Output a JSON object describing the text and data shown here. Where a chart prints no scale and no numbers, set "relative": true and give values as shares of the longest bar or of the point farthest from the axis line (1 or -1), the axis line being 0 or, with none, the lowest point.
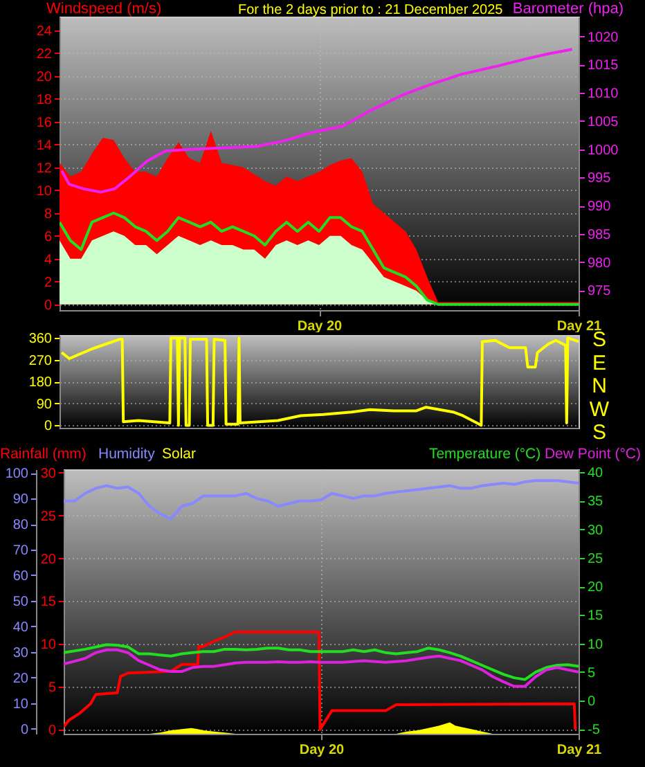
{
  "chart_data": [
    {
      "type": "line",
      "title": "For the 2 days prior to : 21 December 2025",
      "ylabel": "Windspeed (m/s)",
      "y2label": "Barometer (hpa)",
      "xlim": [
        "2025-12-19",
        "2025-12-21"
      ],
      "xticks": [
        {
          "value": "2025-12-20",
          "label": "Day 20"
        },
        {
          "value": "2025-12-21",
          "label": "Day 21"
        }
      ],
      "ylim": [
        -0.5,
        25.2
      ],
      "yticks": [
        0,
        2,
        4,
        6,
        8,
        10,
        12,
        14,
        16,
        18,
        20,
        22,
        24
      ],
      "y2lim": [
        971.5,
        1023.5
      ],
      "y2ticks": [
        975,
        980,
        985,
        990,
        995,
        1000,
        1005,
        1010,
        1015,
        1020
      ],
      "grid": true,
      "marker": "none",
      "x": [
        "2025-12-19T00:00",
        "2025-12-19T01:00",
        "2025-12-19T02:00",
        "2025-12-19T03:00",
        "2025-12-19T04:00",
        "2025-12-19T05:00",
        "2025-12-19T06:00",
        "2025-12-19T07:00",
        "2025-12-19T08:00",
        "2025-12-19T09:00",
        "2025-12-19T10:00",
        "2025-12-19T11:00",
        "2025-12-19T12:00",
        "2025-12-19T13:00",
        "2025-12-19T14:00",
        "2025-12-19T15:00",
        "2025-12-19T16:00",
        "2025-12-19T17:00",
        "2025-12-19T18:00",
        "2025-12-19T19:00",
        "2025-12-19T20:00",
        "2025-12-19T21:00",
        "2025-12-19T22:00",
        "2025-12-19T23:00",
        "2025-12-20T00:00",
        "2025-12-20T01:00",
        "2025-12-20T02:00",
        "2025-12-20T03:00",
        "2025-12-20T04:00",
        "2025-12-20T05:00",
        "2025-12-20T06:00",
        "2025-12-20T07:00",
        "2025-12-20T08:00",
        "2025-12-20T09:00",
        "2025-12-20T10:00",
        "2025-12-20T11:00",
        "2025-12-20T12:00",
        "2025-12-20T13:00",
        "2025-12-20T14:00",
        "2025-12-20T15:00",
        "2025-12-20T16:00",
        "2025-12-20T17:00",
        "2025-12-20T18:00",
        "2025-12-20T19:00",
        "2025-12-20T20:00",
        "2025-12-20T21:00",
        "2025-12-20T22:00",
        "2025-12-20T23:00",
        "2025-12-21T00:00"
      ],
      "series": [
        {
          "type": "area",
          "color": "#ff0000",
          "values": [
            12.4,
            11.2,
            11.6,
            13.2,
            14.6,
            14.4,
            12.8,
            11.6,
            11.6,
            11.2,
            12.8,
            14.2,
            12.8,
            12.4,
            15.2,
            12.4,
            12.2,
            12.0,
            11.4,
            10.8,
            10.4,
            11.2,
            10.8,
            11.2,
            11.6,
            12.2,
            12.6,
            12.8,
            11.6,
            8.8,
            8.0,
            7.2,
            6.4,
            4.8,
            2.4,
            0.2,
            0.2,
            0.2,
            0.2,
            0.2,
            0.2,
            0.2,
            0.2,
            0.2,
            0.2,
            0.2,
            0.2,
            0.2,
            0.2
          ]
        },
        {
          "type": "area",
          "color": "#ccffcc",
          "values": [
            5.6,
            4.0,
            4.0,
            5.6,
            6.0,
            6.4,
            6.0,
            5.2,
            5.2,
            4.4,
            5.2,
            6.0,
            5.6,
            5.2,
            5.6,
            5.2,
            5.2,
            4.8,
            4.8,
            4.0,
            5.2,
            5.6,
            5.2,
            5.6,
            5.2,
            6.0,
            6.0,
            5.2,
            4.8,
            3.6,
            2.4,
            2.0,
            1.6,
            1.2,
            0.4,
            0,
            0,
            0,
            0,
            0,
            0,
            0,
            0,
            0,
            0,
            0,
            0,
            0,
            0
          ]
        },
        {
          "type": "line",
          "color": "#22dd22",
          "values": [
            7.2,
            5.6,
            4.8,
            7.2,
            7.6,
            8.0,
            7.6,
            6.8,
            6.4,
            5.6,
            6.4,
            7.6,
            7.2,
            6.8,
            7.2,
            6.4,
            6.8,
            6.4,
            6.0,
            5.2,
            6.4,
            7.2,
            6.4,
            7.2,
            6.4,
            7.6,
            7.6,
            6.8,
            6.4,
            4.8,
            3.2,
            2.8,
            2.4,
            1.6,
            0.4,
            0,
            0,
            0,
            0,
            0,
            0,
            0,
            0,
            0,
            0,
            0,
            0,
            0,
            0
          ]
        },
        {
          "type": "line",
          "color": "#ee22ee",
          "axis": "y2",
          "x": [
            "2025-12-19T00:12",
            "2025-12-19T00:54",
            "2025-12-19T02:12",
            "2025-12-19T03:48",
            "2025-12-19T05:06",
            "2025-12-19T06:24",
            "2025-12-19T08:06",
            "2025-12-19T09:48",
            "2025-12-19T12:18",
            "2025-12-19T15:42",
            "2025-12-19T18:12",
            "2025-12-19T20:48",
            "2025-12-19T23:12",
            "2025-12-20T02:12",
            "2025-12-20T04:42",
            "2025-12-20T07:42",
            "2025-12-20T10:12",
            "2025-12-20T13:12",
            "2025-12-20T16:12",
            "2025-12-20T19:06",
            "2025-12-20T21:12",
            "2025-12-20T23:24"
          ],
          "values": [
            996.2,
            993.8,
            993.0,
            992.4,
            993.0,
            995.0,
            997.9,
            999.7,
            1000.0,
            1000.3,
            1000.5,
            1001.5,
            1002.9,
            1004.1,
            1006.8,
            1009.6,
            1011.4,
            1013.3,
            1014.6,
            1016.0,
            1016.9,
            1017.7
          ]
        }
      ]
    },
    {
      "type": "line",
      "xlim": [
        "2025-12-19",
        "2025-12-21"
      ],
      "tick_labels": "y",
      "ylim": [
        -10,
        372
      ],
      "yticks": [
        0,
        90,
        180,
        270,
        360
      ],
      "annotations": [
        "S",
        "E",
        "N",
        "W",
        "S"
      ],
      "grid": true,
      "marker": "none",
      "series": [
        {
          "color": "#ffff00",
          "x": [
            "2025-12-19T00:12",
            "2025-12-19T00:54",
            "2025-12-19T03:00",
            "2025-12-19T05:36",
            "2025-12-19T05:48",
            "2025-12-19T05:54",
            "2025-12-19T07:18",
            "2025-12-19T10:12",
            "2025-12-19T10:18",
            "2025-12-19T10:54",
            "2025-12-19T11:00",
            "2025-12-19T11:06",
            "2025-12-19T11:36",
            "2025-12-19T11:42",
            "2025-12-19T12:00",
            "2025-12-19T12:06",
            "2025-12-19T13:36",
            "2025-12-19T13:42",
            "2025-12-19T14:12",
            "2025-12-19T14:18",
            "2025-12-19T15:18",
            "2025-12-19T15:24",
            "2025-12-19T16:30",
            "2025-12-19T16:36",
            "2025-12-19T16:42",
            "2025-12-19T20:12",
            "2025-12-19T22:18",
            "2025-12-20T00:24",
            "2025-12-20T03:00",
            "2025-12-20T04:42",
            "2025-12-20T06:54",
            "2025-12-20T09:00",
            "2025-12-20T09:54",
            "2025-12-20T12:24",
            "2025-12-20T13:18",
            "2025-12-20T14:36",
            "2025-12-20T15:00",
            "2025-12-20T15:06",
            "2025-12-20T16:18",
            "2025-12-20T17:36",
            "2025-12-20T19:06",
            "2025-12-20T19:18",
            "2025-12-20T20:00",
            "2025-12-20T20:12",
            "2025-12-20T21:12",
            "2025-12-20T21:54",
            "2025-12-20T22:48",
            "2025-12-20T22:54",
            "2025-12-20T23:00",
            "2025-12-21T00:00"
          ],
          "values": [
            300,
            275,
            315,
            355,
            355,
            15,
            20,
            10,
            360,
            360,
            0,
            360,
            360,
            0,
            0,
            355,
            355,
            0,
            0,
            355,
            350,
            5,
            5,
            360,
            10,
            20,
            40,
            45,
            55,
            65,
            60,
            60,
            75,
            55,
            40,
            10,
            0,
            345,
            350,
            320,
            320,
            240,
            240,
            300,
            335,
            350,
            330,
            10,
            360,
            345
          ]
        }
      ]
    },
    {
      "type": "line",
      "xlim": [
        "2025-12-19",
        "2025-12-21"
      ],
      "xticks": [
        {
          "value": "2025-12-20",
          "label": "Day 20"
        },
        {
          "value": "2025-12-21",
          "label": "Day 21"
        }
      ],
      "ylim": [
        -0.5,
        30.4
      ],
      "yticks": [
        0,
        5,
        10,
        15,
        20,
        25,
        30
      ],
      "y2lim": [
        -5.8,
        40.5
      ],
      "y2ticks": [
        -5,
        0,
        5,
        10,
        15,
        20,
        25,
        30,
        35,
        40
      ],
      "y3lim": [
        -2,
        101.4
      ],
      "y3ticks": [
        0,
        10,
        20,
        30,
        40,
        50,
        60,
        70,
        80,
        90,
        100
      ],
      "grid": true,
      "legend": "top",
      "marker": "none",
      "series": [
        {
          "name": "Rainfall (mm)",
          "color": "#ff0000",
          "x": [
            "2025-12-19T00:00",
            "2025-12-19T00:30",
            "2025-12-19T01:30",
            "2025-12-19T02:30",
            "2025-12-19T03:00",
            "2025-12-19T05:00",
            "2025-12-19T05:18",
            "2025-12-19T06:00",
            "2025-12-19T10:00",
            "2025-12-19T11:00",
            "2025-12-19T12:30",
            "2025-12-19T12:36",
            "2025-12-19T13:00",
            "2025-12-19T14:00",
            "2025-12-19T15:00",
            "2025-12-19T16:00",
            "2025-12-19T23:48",
            "2025-12-19T23:54",
            "2025-12-20T00:18",
            "2025-12-20T01:00",
            "2025-12-20T06:00",
            "2025-12-20T07:00",
            "2025-12-20T23:36",
            "2025-12-20T23:42"
          ],
          "values": [
            0.3,
            1.1,
            1.9,
            3.0,
            4.1,
            4.3,
            6.2,
            6.6,
            6.8,
            7.6,
            7.6,
            9.7,
            9.7,
            10.3,
            10.8,
            11.4,
            11.4,
            0,
            0.8,
            2.2,
            2.2,
            2.9,
            3.0,
            0
          ]
        },
        {
          "name": "Humidity",
          "color": "#8888ff",
          "axis": "y3",
          "x": [
            "2025-12-19T00:00",
            "2025-12-19T01:00",
            "2025-12-19T02:00",
            "2025-12-19T03:00",
            "2025-12-19T04:00",
            "2025-12-19T05:00",
            "2025-12-19T06:00",
            "2025-12-19T07:00",
            "2025-12-19T08:00",
            "2025-12-19T09:00",
            "2025-12-19T10:00",
            "2025-12-19T11:00",
            "2025-12-19T12:00",
            "2025-12-19T13:00",
            "2025-12-19T14:00",
            "2025-12-19T15:00",
            "2025-12-19T16:00",
            "2025-12-19T17:00",
            "2025-12-19T18:00",
            "2025-12-19T19:00",
            "2025-12-19T20:00",
            "2025-12-19T21:00",
            "2025-12-19T22:00",
            "2025-12-19T23:00",
            "2025-12-20T00:00",
            "2025-12-20T01:00",
            "2025-12-20T02:00",
            "2025-12-20T03:00",
            "2025-12-20T04:00",
            "2025-12-20T05:00",
            "2025-12-20T06:00",
            "2025-12-20T07:00",
            "2025-12-20T08:00",
            "2025-12-20T09:00",
            "2025-12-20T10:00",
            "2025-12-20T11:00",
            "2025-12-20T12:00",
            "2025-12-20T13:00",
            "2025-12-20T14:00",
            "2025-12-20T15:00",
            "2025-12-20T16:00",
            "2025-12-20T17:00",
            "2025-12-20T18:00",
            "2025-12-20T19:00",
            "2025-12-20T20:00",
            "2025-12-20T21:00",
            "2025-12-20T22:00",
            "2025-12-20T23:00",
            "2025-12-21T00:00"
          ],
          "values": [
            89,
            89,
            92,
            94,
            95,
            94,
            94.5,
            92,
            87,
            84,
            82,
            87,
            88,
            91,
            91,
            91,
            91,
            92,
            90,
            89,
            87,
            88,
            89,
            89,
            89.5,
            92,
            91,
            90,
            91,
            91,
            92,
            92.5,
            93,
            93.5,
            94,
            94.5,
            95,
            94,
            94,
            95,
            95.5,
            96,
            95.5,
            96.5,
            97,
            97,
            97,
            96.5,
            96
          ]
        },
        {
          "name": "Temperature (°C)",
          "color": "#22dd22",
          "axis": "y2",
          "x": [
            "2025-12-19T00:00",
            "2025-12-19T02:00",
            "2025-12-19T04:00",
            "2025-12-19T05:00",
            "2025-12-19T06:00",
            "2025-12-19T07:00",
            "2025-12-19T08:00",
            "2025-12-19T09:00",
            "2025-12-19T10:00",
            "2025-12-19T11:00",
            "2025-12-19T12:00",
            "2025-12-19T13:00",
            "2025-12-19T14:00",
            "2025-12-19T15:00",
            "2025-12-19T16:00",
            "2025-12-19T17:00",
            "2025-12-19T18:00",
            "2025-12-19T19:00",
            "2025-12-19T20:00",
            "2025-12-19T21:00",
            "2025-12-19T22:00",
            "2025-12-19T23:00",
            "2025-12-20T00:00",
            "2025-12-20T02:00",
            "2025-12-20T03:00",
            "2025-12-20T04:00",
            "2025-12-20T05:00",
            "2025-12-20T06:00",
            "2025-12-20T07:00",
            "2025-12-20T08:00",
            "2025-12-20T09:00",
            "2025-12-20T10:00",
            "2025-12-20T11:00",
            "2025-12-20T12:00",
            "2025-12-20T13:00",
            "2025-12-20T14:00",
            "2025-12-20T15:00",
            "2025-12-20T16:00",
            "2025-12-20T17:00",
            "2025-12-20T18:00",
            "2025-12-20T19:00",
            "2025-12-20T20:00",
            "2025-12-20T21:00",
            "2025-12-20T22:00",
            "2025-12-20T23:00",
            "2025-12-21T00:00"
          ],
          "values": [
            8.4,
            9.0,
            9.8,
            9.7,
            9.4,
            8.2,
            8.2,
            8.0,
            7.8,
            8.2,
            8.4,
            8.6,
            8.6,
            9.0,
            9.0,
            8.9,
            9.0,
            9.2,
            9.2,
            8.9,
            8.9,
            8.6,
            8.6,
            8.6,
            8.9,
            8.6,
            8.9,
            8.4,
            8.2,
            8.4,
            8.6,
            9.2,
            8.9,
            8.4,
            7.8,
            7.0,
            6.2,
            5.4,
            4.6,
            4.0,
            3.7,
            5.0,
            5.8,
            6.2,
            6.3,
            6.0
          ]
        },
        {
          "name": "Dew Point (°C)",
          "color": "#dd22dd",
          "axis": "y2",
          "x": [
            "2025-12-19T00:00",
            "2025-12-19T02:00",
            "2025-12-19T03:00",
            "2025-12-19T04:00",
            "2025-12-19T05:00",
            "2025-12-19T06:00",
            "2025-12-19T07:00",
            "2025-12-19T08:00",
            "2025-12-19T09:00",
            "2025-12-19T10:00",
            "2025-12-19T11:00",
            "2025-12-19T12:00",
            "2025-12-19T13:00",
            "2025-12-19T14:00",
            "2025-12-19T15:00",
            "2025-12-19T16:00",
            "2025-12-19T17:00",
            "2025-12-19T18:00",
            "2025-12-19T19:00",
            "2025-12-19T20:00",
            "2025-12-19T21:00",
            "2025-12-19T22:00",
            "2025-12-19T23:00",
            "2025-12-20T00:00",
            "2025-12-20T02:00",
            "2025-12-20T04:00",
            "2025-12-20T06:00",
            "2025-12-20T08:00",
            "2025-12-20T10:00",
            "2025-12-20T11:00",
            "2025-12-20T12:00",
            "2025-12-20T13:00",
            "2025-12-20T14:00",
            "2025-12-20T15:00",
            "2025-12-20T16:00",
            "2025-12-20T17:00",
            "2025-12-20T18:00",
            "2025-12-20T19:00",
            "2025-12-20T20:00",
            "2025-12-20T21:00",
            "2025-12-20T22:00",
            "2025-12-20T23:00",
            "2025-12-21T00:00"
          ],
          "values": [
            6.4,
            7.4,
            8.4,
            8.9,
            8.9,
            8.4,
            7.0,
            6.2,
            5.4,
            5.1,
            5.1,
            5.8,
            6.0,
            6.0,
            6.3,
            6.6,
            6.7,
            6.7,
            6.7,
            6.8,
            6.7,
            6.7,
            6.8,
            6.7,
            6.7,
            7.0,
            6.7,
            7.0,
            7.6,
            7.8,
            7.4,
            7.0,
            6.2,
            5.4,
            4.2,
            3.3,
            2.5,
            2.5,
            4.2,
            5.4,
            5.8,
            5.4,
            5.0
          ]
        }
      ]
    },
    {
      "type": "area",
      "relative": true,
      "xlim": [
        "2025-12-19",
        "2025-12-21"
      ],
      "tick_labels": false,
      "legend": "top",
      "series": [
        {
          "name": "Solar",
          "color": "#ffff00",
          "x": [
            "2025-12-19T00:00",
            "2025-12-19T08:00",
            "2025-12-19T09:00",
            "2025-12-19T10:00",
            "2025-12-19T11:00",
            "2025-12-19T11:54",
            "2025-12-19T12:30",
            "2025-12-19T13:00",
            "2025-12-19T14:00",
            "2025-12-19T15:00",
            "2025-12-19T16:00",
            "2025-12-20T07:00",
            "2025-12-20T08:00",
            "2025-12-20T09:00",
            "2025-12-20T10:00",
            "2025-12-20T11:00",
            "2025-12-20T12:00",
            "2025-12-20T12:30",
            "2025-12-20T13:00",
            "2025-12-20T14:00",
            "2025-12-20T15:00",
            "2025-12-20T16:00",
            "2025-12-21T00:00"
          ],
          "values": [
            0,
            0,
            0.1,
            0.3,
            0.4,
            0.5,
            0.4,
            0.3,
            0.2,
            0.1,
            0,
            0,
            0.2,
            0.3,
            0.5,
            0.7,
            1,
            0.7,
            0.6,
            0.4,
            0.2,
            0,
            0
          ]
        }
      ]
    }
  ]
}
